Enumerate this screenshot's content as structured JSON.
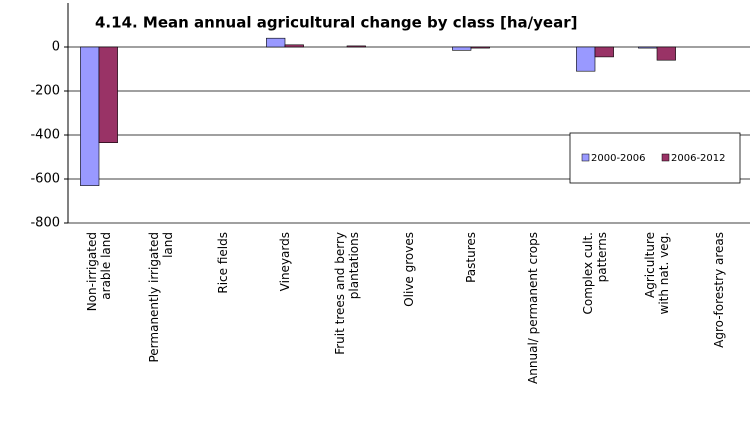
{
  "chart_data": {
    "type": "bar",
    "title": "4.14. Mean annual agricultural change by class [ha/year]",
    "categories": [
      "Non-irrigated\narable land",
      "Permanently irrigated\nland",
      "Rice fields",
      "Vineyards",
      "Fruit trees and berry\nplantations",
      "Olive groves",
      "Pastures",
      "Annual/ permanent crops",
      "Complex cult.\npatterns",
      "Agriculture\nwith nat. veg.",
      "Agro-forestry areas"
    ],
    "series": [
      {
        "name": "2000-2006",
        "color": "#9999ff",
        "values": [
          -630,
          0,
          0,
          40,
          0,
          0,
          -15,
          0,
          -110,
          -5,
          0
        ]
      },
      {
        "name": "2006-2012",
        "color": "#993366",
        "values": [
          -435,
          0,
          0,
          10,
          5,
          0,
          -5,
          0,
          -45,
          -60,
          0
        ]
      }
    ],
    "ylim": [
      -800,
      200
    ],
    "yticks": [
      -800,
      -600,
      -400,
      -200,
      0
    ],
    "grid": true,
    "legend": "right"
  }
}
